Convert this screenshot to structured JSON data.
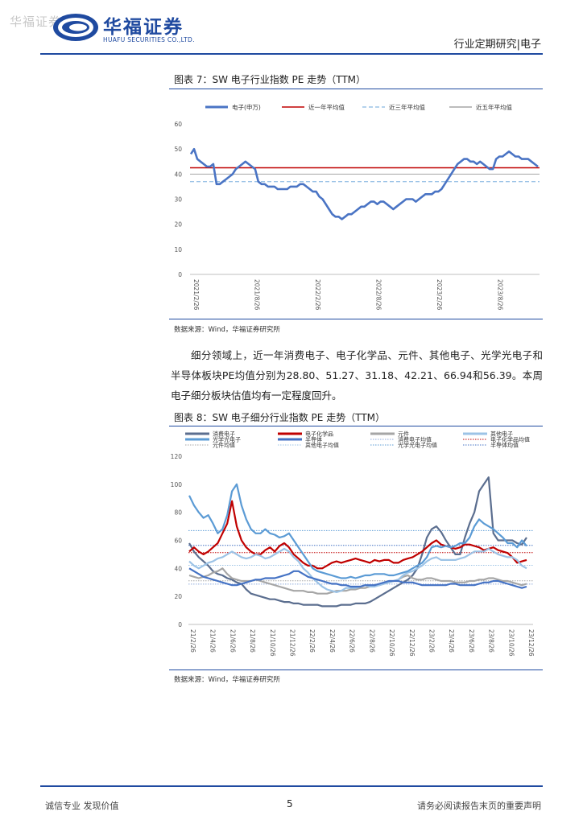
{
  "header": {
    "watermark": "华福证券",
    "logo_cn": "华福证券",
    "logo_en": "HUAFU SECURITIES CO.,LTD.",
    "report_type": "行业定期研究|电子"
  },
  "figure7": {
    "title": "图表 7：SW 电子行业指数 PE 走势（TTM）",
    "source": "数据来源：Wind，华福证券研究所",
    "chart_data": {
      "type": "line",
      "title": "",
      "ylim": [
        0,
        60
      ],
      "yticks": [
        "0",
        "10",
        "20",
        "30",
        "40",
        "50",
        "60"
      ],
      "xticks": [
        "2021/2/26",
        "2021/8/26",
        "2022/2/26",
        "2022/8/26",
        "2023/2/26",
        "2023/8/26"
      ],
      "legend": [
        "电子(申万)",
        "近一年平均值",
        "近三年平均值",
        "近五年平均值"
      ],
      "colors": {
        "series": "#4a74c4",
        "avg1y": "#c00000",
        "avg3y": "#9cc3e6",
        "avg5y": "#a6a6a6"
      },
      "series": [
        {
          "name": "电子(申万)",
          "values": [
            48,
            50,
            46,
            45,
            44,
            43,
            43,
            44,
            36,
            36,
            37,
            38,
            39,
            40,
            42,
            43,
            44,
            45,
            44,
            43,
            42,
            37,
            36,
            36,
            35,
            35,
            35,
            34,
            34,
            34,
            34,
            35,
            35,
            35,
            36,
            36,
            35,
            34,
            33,
            33,
            31,
            30,
            28,
            26,
            24,
            23,
            23,
            22,
            23,
            24,
            24,
            25,
            26,
            27,
            27,
            28,
            29,
            29,
            28,
            29,
            29,
            28,
            27,
            26,
            27,
            28,
            29,
            30,
            30,
            30,
            29,
            30,
            31,
            32,
            32,
            32,
            33,
            33,
            34,
            36,
            38,
            40,
            42,
            44,
            45,
            46,
            46,
            45,
            45,
            44,
            45,
            44,
            43,
            42,
            42,
            46,
            47,
            47,
            48,
            49,
            48,
            47,
            47,
            46,
            46,
            46,
            45,
            44,
            43
          ]
        }
      ],
      "avg1y": 42.5,
      "avg3y": 37,
      "avg5y": 40
    }
  },
  "paragraph": "细分领域上，近一年消费电子、电子化学品、元件、其他电子、光学光电子和半导体板块PE均值分别为28.80、51.27、31.18、42.21、66.94和56.39。本周电子细分板块估值均有一定程度回升。",
  "figure8": {
    "title": "图表 8：SW 电子细分行业指数 PE 走势（TTM）",
    "source": "数据来源：Wind，华福证券研究所",
    "chart_data": {
      "type": "line",
      "title": "",
      "ylim": [
        0,
        120
      ],
      "yticks": [
        "0",
        "20",
        "40",
        "60",
        "80",
        "100",
        "120"
      ],
      "xticks": [
        "21/2/26",
        "21/4/26",
        "21/6/26",
        "21/8/26",
        "21/10/26",
        "21/12/26",
        "22/2/26",
        "22/4/26",
        "22/6/26",
        "22/8/26",
        "22/10/26",
        "22/12/26",
        "23/2/26",
        "23/4/26",
        "23/6/26",
        "23/8/26",
        "23/10/26",
        "23/12/26"
      ],
      "legend": [
        "消费电子",
        "电子化学品",
        "元件",
        "其他电子",
        "光学光电子",
        "半导体",
        "消费电子均值",
        "电子化学品均值",
        "其他电子均值",
        "光学光电子均值",
        "半导体均值",
        "元件均值"
      ],
      "series": [
        {
          "name": "消费电子",
          "color": "#5b6e8f",
          "values": [
            58,
            52,
            48,
            45,
            42,
            38,
            36,
            35,
            33,
            32,
            30,
            29,
            25,
            22,
            21,
            20,
            19,
            18,
            18,
            17,
            16,
            16,
            15,
            15,
            14,
            14,
            14,
            14,
            13,
            13,
            13,
            13,
            14,
            14,
            14,
            15,
            15,
            15,
            16,
            18,
            20,
            22,
            24,
            26,
            28,
            30,
            32,
            35,
            40,
            50,
            62,
            68,
            70,
            66,
            60,
            55,
            50,
            50,
            62,
            72,
            80,
            95,
            100,
            105,
            65,
            60,
            60,
            60,
            60,
            58,
            57,
            62
          ]
        },
        {
          "name": "电子化学品",
          "color": "#c00000",
          "values": [
            52,
            55,
            52,
            50,
            52,
            55,
            58,
            65,
            72,
            88,
            70,
            60,
            55,
            52,
            50,
            50,
            53,
            55,
            52,
            56,
            58,
            55,
            50,
            47,
            44,
            42,
            42,
            40,
            40,
            42,
            44,
            45,
            44,
            45,
            46,
            47,
            46,
            45,
            44,
            46,
            45,
            46,
            46,
            44,
            44,
            46,
            47,
            48,
            50,
            52,
            55,
            58,
            60,
            57,
            56,
            55,
            54,
            55,
            57,
            57,
            56,
            55,
            53,
            54,
            55,
            53,
            52,
            51,
            48,
            44,
            45,
            46
          ]
        },
        {
          "name": "元件",
          "color": "#a6a6a6",
          "values": [
            35,
            34,
            33,
            34,
            35,
            37,
            38,
            40,
            36,
            33,
            32,
            31,
            31,
            31,
            32,
            31,
            30,
            29,
            28,
            27,
            26,
            25,
            24,
            24,
            24,
            23,
            23,
            22,
            22,
            22,
            23,
            24,
            24,
            24,
            25,
            25,
            26,
            26,
            27,
            28,
            28,
            29,
            30,
            31,
            32,
            34,
            35,
            33,
            32,
            32,
            33,
            33,
            32,
            31,
            31,
            31,
            30,
            30,
            30,
            31,
            31,
            32,
            32,
            33,
            33,
            32,
            31,
            31,
            30,
            29,
            28,
            29
          ]
        },
        {
          "name": "其他电子",
          "color": "#9cc3e6",
          "values": [
            45,
            42,
            40,
            42,
            44,
            45,
            47,
            48,
            50,
            52,
            50,
            48,
            47,
            48,
            50,
            49,
            47,
            48,
            50,
            52,
            54,
            52,
            48,
            45,
            40,
            37,
            33,
            30,
            27,
            25,
            24,
            23,
            24,
            26,
            26,
            26,
            27,
            28,
            27,
            27,
            28,
            29,
            30,
            31,
            32,
            35,
            37,
            38,
            40,
            42,
            45,
            47,
            48,
            46,
            46,
            46,
            46,
            47,
            48,
            50,
            52,
            52,
            52,
            54,
            52,
            50,
            49,
            48,
            48,
            46,
            42,
            40
          ]
        },
        {
          "name": "光学光电子",
          "color": "#5b9bd5",
          "values": [
            92,
            85,
            80,
            76,
            78,
            72,
            65,
            68,
            78,
            95,
            100,
            85,
            75,
            68,
            65,
            65,
            68,
            65,
            64,
            62,
            63,
            65,
            60,
            55,
            50,
            45,
            40,
            38,
            37,
            36,
            35,
            34,
            33,
            33,
            34,
            33,
            34,
            35,
            35,
            36,
            36,
            36,
            35,
            35,
            36,
            37,
            38,
            40,
            42,
            44,
            48,
            55,
            56,
            55,
            56,
            55,
            56,
            58,
            58,
            62,
            70,
            75,
            72,
            70,
            68,
            65,
            62,
            58,
            58,
            55,
            60,
            56
          ]
        },
        {
          "name": "半导体",
          "color": "#4472c4",
          "values": [
            40,
            38,
            36,
            34,
            33,
            32,
            31,
            30,
            29,
            28,
            28,
            29,
            30,
            31,
            32,
            32,
            33,
            33,
            33,
            34,
            35,
            36,
            38,
            38,
            36,
            34,
            33,
            32,
            31,
            30,
            29,
            29,
            28,
            28,
            27,
            27,
            27,
            28,
            28,
            28,
            29,
            30,
            31,
            31,
            31,
            30,
            30,
            30,
            29,
            28,
            28,
            28,
            28,
            28,
            28,
            29,
            29,
            28,
            28,
            28,
            28,
            29,
            30,
            30,
            31,
            31,
            30,
            29,
            28,
            27,
            26,
            27
          ]
        }
      ],
      "averages": [
        {
          "name": "消费电子均值",
          "value": 28.8,
          "color": "#8faadc"
        },
        {
          "name": "电子化学品均值",
          "value": 51.27,
          "color": "#c00000"
        },
        {
          "name": "元件均值",
          "value": 31.18,
          "color": "#a6a6a6"
        },
        {
          "name": "其他电子均值",
          "value": 42.21,
          "color": "#9cc3e6"
        },
        {
          "name": "光学光电子均值",
          "value": 66.94,
          "color": "#5b9bd5"
        },
        {
          "name": "半导体均值",
          "value": 56.39,
          "color": "#4472c4"
        }
      ]
    }
  },
  "footer": {
    "left": "诚信专业  发现价值",
    "page": "5",
    "right": "请务必阅读报告末页的重要声明"
  }
}
